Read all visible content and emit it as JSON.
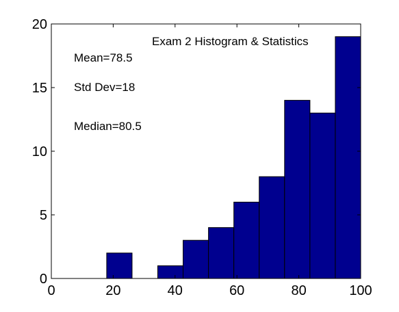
{
  "chart_data": {
    "type": "bar",
    "title": "Exam 2 Histogram & Statistics",
    "xlabel": "",
    "ylabel": "",
    "xlim": [
      0,
      100
    ],
    "ylim": [
      0,
      20
    ],
    "xticks": [
      "0",
      "20",
      "40",
      "60",
      "80",
      "100"
    ],
    "yticks": [
      "0",
      "5",
      "10",
      "15",
      "20"
    ],
    "bin_width": 8.2,
    "bins": [
      {
        "center": 22.0,
        "count": 2
      },
      {
        "center": 38.5,
        "count": 1
      },
      {
        "center": 46.7,
        "count": 3
      },
      {
        "center": 54.9,
        "count": 4
      },
      {
        "center": 63.1,
        "count": 6
      },
      {
        "center": 71.3,
        "count": 8
      },
      {
        "center": 79.5,
        "count": 14
      },
      {
        "center": 87.7,
        "count": 13
      },
      {
        "center": 95.9,
        "count": 19
      }
    ],
    "annotations": [
      "Mean=78.5",
      "Std Dev=18",
      "Median=80.5"
    ],
    "bar_color": "#00008f",
    "grid": false
  }
}
